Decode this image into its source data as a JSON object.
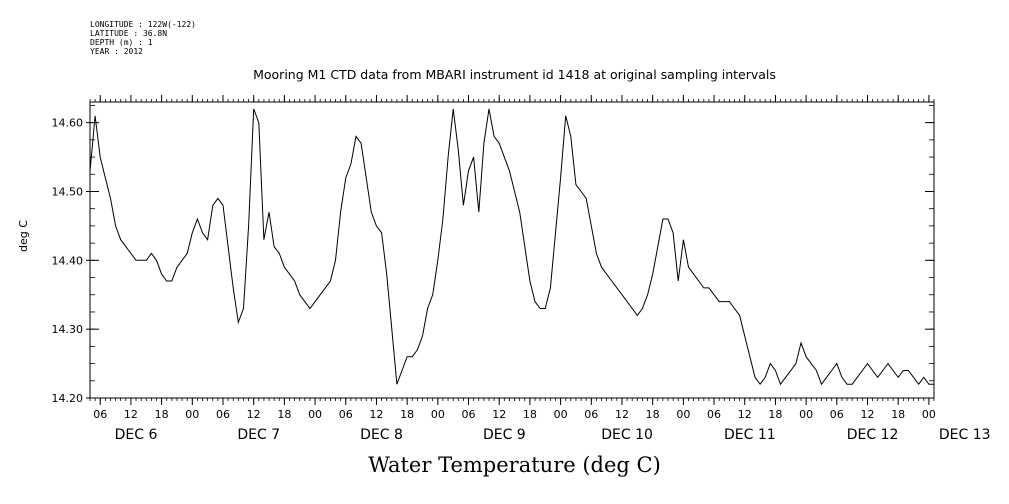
{
  "header": {
    "longitude": "LONGITUDE : 122W(-122)",
    "latitude": "LATITUDE : 36.8N",
    "depth": "DEPTH (m) : 1",
    "year": "YEAR : 2012"
  },
  "chart_data": {
    "type": "line",
    "title": "Mooring M1 CTD data from MBARI instrument id 1418 at original sampling intervals",
    "xlabel": "Water Temperature (deg C)",
    "ylabel": "deg C",
    "ylim": [
      14.2,
      14.63
    ],
    "yticks": [
      "14.20",
      "14.30",
      "14.40",
      "14.50",
      "14.60"
    ],
    "x_unit": "hours since start (axis starts DEC 6 04:00)",
    "xlim": [
      0,
      165
    ],
    "hour_tick_labels": [
      "06",
      "12",
      "18",
      "00",
      "06",
      "12",
      "18",
      "00",
      "06",
      "12",
      "18",
      "00",
      "06",
      "12",
      "18",
      "00",
      "06",
      "12",
      "18",
      "00",
      "06",
      "12",
      "18",
      "00",
      "06",
      "12",
      "18",
      "00"
    ],
    "day_labels": [
      "DEC 6",
      "DEC 7",
      "DEC 8",
      "DEC 9",
      "DEC 10",
      "DEC 11",
      "DEC 12",
      "DEC 13"
    ],
    "grid": false,
    "series": [
      {
        "x": [
          0,
          0.5,
          1,
          2,
          3,
          4,
          5,
          6,
          7,
          8,
          9,
          10,
          11,
          12,
          13,
          14,
          15,
          16,
          17,
          18,
          19,
          20,
          21,
          22,
          23,
          24,
          25,
          26,
          27,
          28,
          29,
          30,
          31,
          32,
          33,
          34,
          35,
          36,
          37,
          38,
          39,
          40,
          41,
          42,
          43,
          44,
          45,
          46,
          47,
          48,
          49,
          50,
          51,
          52,
          53,
          54,
          55,
          56,
          57,
          58,
          59,
          60,
          61,
          62,
          63,
          64,
          65,
          66,
          67,
          68,
          69,
          70,
          71,
          72,
          73,
          74,
          75,
          76,
          77,
          78,
          79,
          80,
          81,
          82,
          83,
          84,
          85,
          86,
          87,
          88,
          89,
          90,
          91,
          92,
          93,
          94,
          95,
          96,
          97,
          98,
          99,
          100,
          101,
          102,
          103,
          104,
          105,
          106,
          107,
          108,
          109,
          110,
          111,
          112,
          113,
          114,
          115,
          116,
          117,
          118,
          119,
          120,
          121,
          122,
          123,
          124,
          125,
          126,
          127,
          128,
          129,
          130,
          131,
          132,
          133,
          134,
          135,
          136,
          137,
          138,
          139,
          140,
          141,
          142,
          143,
          144,
          145,
          146,
          147,
          148,
          149,
          150,
          151,
          152,
          153,
          154,
          155,
          156,
          157,
          158,
          159,
          160,
          161,
          162,
          163,
          164,
          165
        ],
        "values": [
          14.53,
          14.57,
          14.61,
          14.55,
          14.52,
          14.49,
          14.45,
          14.43,
          14.42,
          14.41,
          14.4,
          14.4,
          14.4,
          14.41,
          14.4,
          14.38,
          14.37,
          14.37,
          14.39,
          14.4,
          14.41,
          14.44,
          14.46,
          14.44,
          14.43,
          14.48,
          14.49,
          14.48,
          14.42,
          14.36,
          14.31,
          14.33,
          14.45,
          14.62,
          14.6,
          14.43,
          14.47,
          14.42,
          14.41,
          14.39,
          14.38,
          14.37,
          14.35,
          14.34,
          14.33,
          14.34,
          14.35,
          14.36,
          14.37,
          14.4,
          14.47,
          14.52,
          14.54,
          14.58,
          14.57,
          14.52,
          14.47,
          14.45,
          14.44,
          14.38,
          14.3,
          14.22,
          14.24,
          14.26,
          14.26,
          14.27,
          14.29,
          14.33,
          14.35,
          14.4,
          14.46,
          14.55,
          14.62,
          14.56,
          14.48,
          14.53,
          14.55,
          14.47,
          14.57,
          14.62,
          14.58,
          14.57,
          14.55,
          14.53,
          14.5,
          14.47,
          14.42,
          14.37,
          14.34,
          14.33,
          14.33,
          14.36,
          14.44,
          14.52,
          14.61,
          14.58,
          14.51,
          14.5,
          14.49,
          14.45,
          14.41,
          14.39,
          14.38,
          14.37,
          14.36,
          14.35,
          14.34,
          14.33,
          14.32,
          14.33,
          14.35,
          14.38,
          14.42,
          14.46,
          14.46,
          14.44,
          14.37,
          14.43,
          14.39,
          14.38,
          14.37,
          14.36,
          14.36,
          14.35,
          14.34,
          14.34,
          14.34,
          14.33,
          14.32,
          14.29,
          14.26,
          14.23,
          14.22,
          14.23,
          14.25,
          14.24,
          14.22,
          14.23,
          14.24,
          14.25,
          14.28,
          14.26,
          14.25,
          14.24,
          14.22,
          14.23,
          14.24,
          14.25,
          14.23,
          14.22,
          14.22,
          14.23,
          14.24,
          14.25,
          14.24,
          14.23,
          14.24,
          14.25,
          14.24,
          14.23,
          14.24,
          14.24,
          14.23,
          14.22,
          14.23,
          14.22,
          14.22
        ]
      }
    ]
  }
}
